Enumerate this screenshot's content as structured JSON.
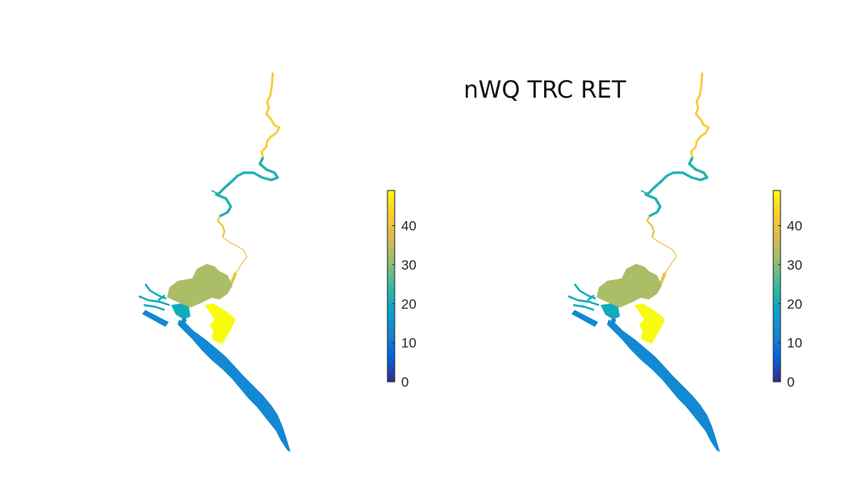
{
  "figure": {
    "title": "nWQ TRC RET",
    "panels": [
      {
        "name": "left-panel",
        "colorbar": {
          "ticks": [
            "0",
            "10",
            "20",
            "30",
            "40"
          ],
          "range": [
            0,
            49
          ]
        }
      },
      {
        "name": "right-panel",
        "colorbar": {
          "ticks": [
            "0",
            "10",
            "20",
            "30",
            "40"
          ],
          "range": [
            0,
            49
          ]
        }
      }
    ]
  },
  "colormap": "parula",
  "region_values": {
    "upper_river": 42,
    "middle_river": 22,
    "lower_river_reach": 40,
    "main_lake": 33,
    "west_channels": 20,
    "lagoon_south": 49,
    "outlet_bar": 13,
    "coastal_strip": 13
  }
}
